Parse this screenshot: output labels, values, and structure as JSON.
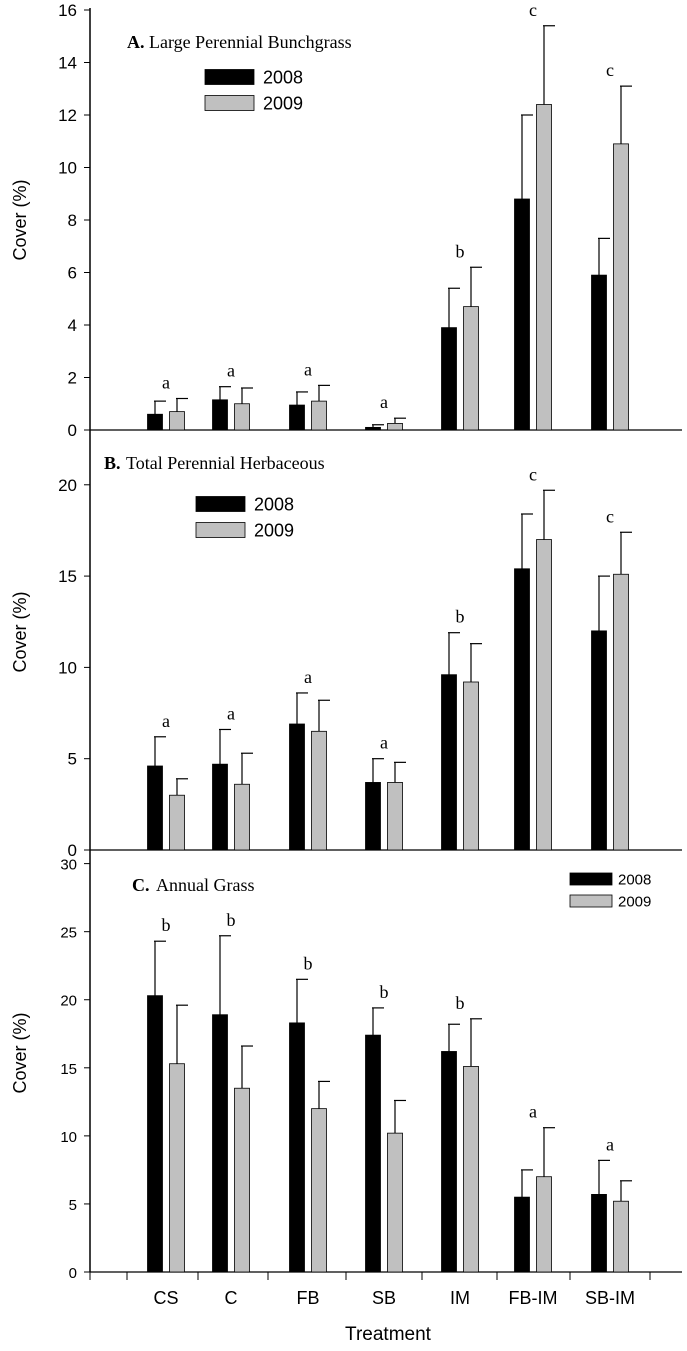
{
  "treatments": [
    "CS",
    "C",
    "FB",
    "SB",
    "IM",
    "FB-IM",
    "SB-IM"
  ],
  "xlabel": "Treatment",
  "colors": {
    "2008": "#000000",
    "2009": "#c0c0c0",
    "axis": "#000000"
  },
  "chart_data": [
    {
      "type": "bar",
      "panel_letter": "A.",
      "title": "Large Perennial Bunchgrass",
      "ylabel": "Cover (%)",
      "ylim": [
        0,
        16
      ],
      "yticks": [
        0,
        2,
        4,
        6,
        8,
        10,
        12,
        14,
        16
      ],
      "categories": [
        "CS",
        "C",
        "FB",
        "SB",
        "IM",
        "FB-IM",
        "SB-IM"
      ],
      "series": [
        {
          "name": "2008",
          "values": [
            0.6,
            1.15,
            0.95,
            0.1,
            3.9,
            8.8,
            5.9
          ],
          "errors": [
            0.5,
            0.5,
            0.5,
            0.1,
            1.5,
            3.2,
            1.4
          ]
        },
        {
          "name": "2009",
          "values": [
            0.7,
            1.0,
            1.1,
            0.25,
            4.7,
            12.4,
            10.9
          ],
          "errors": [
            0.5,
            0.6,
            0.6,
            0.2,
            1.5,
            3.0,
            2.2
          ]
        }
      ],
      "significance_letters": [
        "a",
        "a",
        "a",
        "a",
        "b",
        "c",
        "c"
      ],
      "legend_position": "top-left",
      "grid": false
    },
    {
      "type": "bar",
      "panel_letter": "B.",
      "title": "Total Perennial Herbaceous",
      "ylabel": "Cover (%)",
      "ylim": [
        0,
        23
      ],
      "yticks": [
        0,
        5,
        10,
        15,
        20
      ],
      "categories": [
        "CS",
        "C",
        "FB",
        "SB",
        "IM",
        "FB-IM",
        "SB-IM"
      ],
      "series": [
        {
          "name": "2008",
          "values": [
            4.6,
            4.7,
            6.9,
            3.7,
            9.6,
            15.4,
            12.0
          ],
          "errors": [
            1.6,
            1.9,
            1.7,
            1.3,
            2.3,
            3.0,
            3.0
          ]
        },
        {
          "name": "2009",
          "values": [
            3.0,
            3.6,
            6.5,
            3.7,
            9.2,
            17.0,
            15.1
          ],
          "errors": [
            0.9,
            1.7,
            1.7,
            1.1,
            2.1,
            2.7,
            2.3
          ]
        }
      ],
      "significance_letters": [
        "a",
        "a",
        "a",
        "a",
        "b",
        "c",
        "c"
      ],
      "legend_position": "top-left",
      "grid": false
    },
    {
      "type": "bar",
      "panel_letter": "C.",
      "title": "Annual Grass",
      "ylabel": "Cover (%)",
      "ylim": [
        0,
        31
      ],
      "yticks": [
        0,
        5,
        10,
        15,
        20,
        25,
        30
      ],
      "categories": [
        "CS",
        "C",
        "FB",
        "SB",
        "IM",
        "FB-IM",
        "SB-IM"
      ],
      "series": [
        {
          "name": "2008",
          "values": [
            20.3,
            18.9,
            18.3,
            17.4,
            16.2,
            5.5,
            5.7
          ],
          "errors": [
            4.0,
            5.8,
            3.2,
            2.0,
            2.0,
            2.0,
            2.5
          ]
        },
        {
          "name": "2009",
          "values": [
            15.3,
            13.5,
            12.0,
            10.2,
            15.1,
            7.0,
            5.2
          ],
          "errors": [
            4.3,
            3.1,
            2.0,
            2.4,
            3.5,
            3.6,
            1.5
          ]
        }
      ],
      "significance_letters": [
        "b",
        "b",
        "b",
        "b",
        "b",
        "a",
        "a"
      ],
      "legend_position": "top-right",
      "grid": false
    }
  ]
}
